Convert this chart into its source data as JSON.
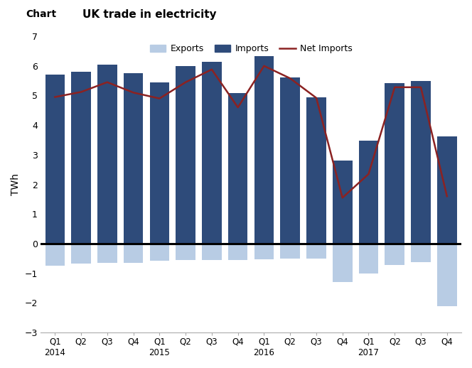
{
  "title_label": "Chart",
  "title_main": "UK trade in electricity",
  "ylabel": "TWh",
  "ylim": [
    -3,
    7
  ],
  "yticks": [
    -3,
    -2,
    -1,
    0,
    1,
    2,
    3,
    4,
    5,
    6,
    7
  ],
  "categories": [
    "Q1\n2014",
    "Q2",
    "Q3",
    "Q4",
    "Q1\n2015",
    "Q2",
    "Q3",
    "Q4",
    "Q1\n2016",
    "Q2",
    "Q3",
    "Q4",
    "Q1\n2017",
    "Q2",
    "Q3",
    "Q4"
  ],
  "imports": [
    5.7,
    5.8,
    6.05,
    5.75,
    5.45,
    6.0,
    6.15,
    5.08,
    6.32,
    5.6,
    4.95,
    2.8,
    3.48,
    5.42,
    5.48,
    3.62
  ],
  "exports": [
    -0.75,
    -0.68,
    -0.65,
    -0.65,
    -0.57,
    -0.55,
    -0.55,
    -0.55,
    -0.52,
    -0.5,
    -0.5,
    -1.3,
    -1.0,
    -0.72,
    -0.62,
    -2.1
  ],
  "net_imports": [
    4.95,
    5.12,
    5.45,
    5.1,
    4.9,
    5.45,
    5.88,
    4.6,
    6.0,
    5.58,
    4.92,
    1.55,
    2.35,
    5.28,
    5.28,
    1.6
  ],
  "imports_color": "#2E4B7A",
  "exports_color": "#B8CCE4",
  "net_imports_color": "#8B2222",
  "zero_line_color": "black",
  "background_color": "#FFFFFF",
  "legend_exports": "Exports",
  "legend_imports": "Imports",
  "legend_net": "Net Imports"
}
